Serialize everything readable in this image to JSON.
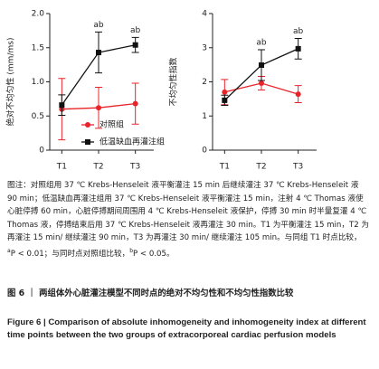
{
  "chart_data": [
    {
      "type": "line",
      "ylabel": "绝对不均匀性 (mm/ms)",
      "categories": [
        "T1",
        "T2",
        "T3"
      ],
      "ylim": [
        0,
        2
      ],
      "yticks": [
        0,
        0.5,
        {
          "value": 1,
          "label": "1.0"
        },
        1.5,
        {
          "value": 2,
          "label": "2.0"
        }
      ],
      "legend": "lower right",
      "series": [
        {
          "name": "对照组",
          "color": "#e8242a",
          "marker": "circle",
          "values": [
            0.6,
            0.62,
            0.68
          ],
          "errors": [
            0.45,
            0.3,
            0.3
          ]
        },
        {
          "name": "低温缺血再灌注组",
          "color": "#111111",
          "marker": "square",
          "values": [
            0.66,
            1.43,
            1.54
          ],
          "errors": [
            0.15,
            0.3,
            0.11
          ]
        }
      ],
      "annotations": [
        null,
        "ab",
        "ab"
      ]
    },
    {
      "type": "line",
      "ylabel": "不均匀性指数",
      "categories": [
        "T1",
        "T2",
        "T3"
      ],
      "ylim": [
        0,
        4
      ],
      "yticks": [
        0,
        1,
        2,
        3,
        4
      ],
      "series": [
        {
          "color": "#e8242a",
          "marker": "circle",
          "values": [
            1.7,
            1.96,
            1.64
          ],
          "errors": [
            0.37,
            0.2,
            0.25
          ]
        },
        {
          "color": "#111111",
          "marker": "square",
          "values": [
            1.46,
            2.49,
            2.97
          ],
          "errors": [
            0.15,
            0.45,
            0.3
          ]
        }
      ],
      "annotations": [
        null,
        "ab",
        "ab"
      ]
    }
  ],
  "note": [
    "图注：对照组用 37 ℃ Krebs-Henseleit 液平衡灌注 15 min 后继续灌注 37 ℃ Krebs-Henseleit 液 90 min；低温缺血再灌注组用 37 ℃ Krebs-Henseleit 液平衡灌注 15 min，注射 4 ℃ Thomas 液使心脏停搏 60 min，心脏停搏期间周围用 4 ℃ Krebs-Henseleit 液保护，停搏 30 min 时半量复灌 4 ℃ Thomas 液，停搏结束后用 37 ℃ Krebs-Henseleit 液再灌注 30 min。T1 为平衡灌注 15 min，T2 为再灌注 15 min/ 继续灌注 90 min，T3 为再灌注 30 min/ 继续灌注 105 min。与同组 T1 时点比较，",
    "a",
    "P < 0.01；与同时点对照组比较，",
    "b",
    "P < 0.05。"
  ],
  "caption_cn": "图 6 ｜ 两组体外心脏灌注模型不同时点的绝对不均匀性和不均匀性指数比较",
  "caption_en": "Figure 6 | Comparison of absolute inhomogeneity and inhomogeneity index at different time points between the two groups of extracorporeal cardiac perfusion models"
}
